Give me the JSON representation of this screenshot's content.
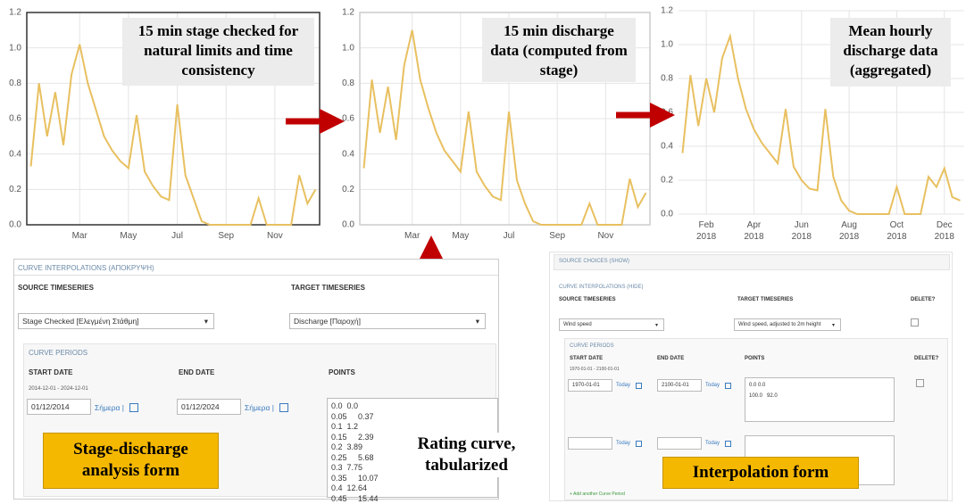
{
  "chart_data": [
    {
      "type": "line",
      "annotation": "15 min stage checked for natural limits and time consistency",
      "color": "#e8c060",
      "grid": true,
      "categories": [
        null,
        null,
        null,
        null,
        null,
        null,
        "Mar",
        null,
        null,
        null,
        null,
        null,
        "May",
        null,
        null,
        null,
        null,
        null,
        "Jul",
        null,
        null,
        null,
        null,
        null,
        "Sep",
        null,
        null,
        null,
        null,
        null,
        "Nov",
        null,
        null,
        null,
        null,
        null
      ],
      "values": [
        0.33,
        0.8,
        0.5,
        0.75,
        0.45,
        0.85,
        1.02,
        0.8,
        0.65,
        0.5,
        0.42,
        0.36,
        0.32,
        0.62,
        0.3,
        0.22,
        0.16,
        0.14,
        0.68,
        0.28,
        0.15,
        0.02,
        0,
        0,
        0,
        0,
        0,
        0,
        0.15,
        0,
        0,
        0,
        0,
        0.28,
        0.12,
        0.2
      ],
      "ylim": [
        0,
        1.2
      ],
      "yticks": [
        {
          "value": 0,
          "label": "0.0"
        },
        0.2,
        0.4,
        0.6,
        0.8,
        {
          "value": 1,
          "label": "1.0"
        },
        1.2
      ]
    },
    {
      "type": "line",
      "annotation": "15 min discharge data (computed from stage)",
      "color": "#e8c060",
      "grid": true,
      "categories": [
        null,
        null,
        null,
        null,
        null,
        null,
        "Mar",
        null,
        null,
        null,
        null,
        null,
        "May",
        null,
        null,
        null,
        null,
        null,
        "Jul",
        null,
        null,
        null,
        null,
        null,
        "Sep",
        null,
        null,
        null,
        null,
        null,
        "Nov",
        null,
        null,
        null,
        null,
        null
      ],
      "values": [
        0.32,
        0.82,
        0.52,
        0.78,
        0.48,
        0.9,
        1.1,
        0.82,
        0.66,
        0.52,
        0.42,
        0.36,
        0.3,
        0.64,
        0.3,
        0.22,
        0.16,
        0.14,
        0.64,
        0.25,
        0.12,
        0.02,
        0,
        0,
        0,
        0,
        0,
        0,
        0.12,
        0,
        0,
        0,
        0,
        0.26,
        0.1,
        0.18
      ],
      "ylim": [
        0,
        1.2
      ],
      "yticks": [
        {
          "value": 0,
          "label": "0.0"
        },
        0.2,
        0.4,
        0.6,
        0.8,
        {
          "value": 1,
          "label": "1.0"
        },
        1.2
      ]
    },
    {
      "type": "line",
      "annotation": "Mean hourly discharge data (aggregated)",
      "color": "#e8c060",
      "grid": true,
      "categories": [
        null,
        null,
        null,
        "Feb 2018",
        null,
        null,
        null,
        null,
        null,
        "Apr 2018",
        null,
        null,
        null,
        null,
        null,
        "Jun 2018",
        null,
        null,
        null,
        null,
        null,
        "Aug 2018",
        null,
        null,
        null,
        null,
        null,
        "Oct 2018",
        null,
        null,
        null,
        null,
        null,
        "Dec 2018",
        null,
        null
      ],
      "values": [
        0.36,
        0.82,
        0.52,
        0.8,
        0.6,
        0.92,
        1.05,
        0.8,
        0.62,
        0.5,
        0.42,
        0.36,
        0.3,
        0.62,
        0.28,
        0.2,
        0.15,
        0.14,
        0.62,
        0.22,
        0.08,
        0.02,
        0,
        0,
        0,
        0,
        0,
        0.16,
        0,
        0,
        0,
        0.22,
        0.16,
        0.27,
        0.1,
        0.08
      ],
      "ylim": [
        0,
        1.2
      ],
      "yticks": [
        {
          "value": 0,
          "label": "0.0"
        },
        0.2,
        0.4,
        0.6,
        0.8,
        {
          "value": 1,
          "label": "1.0"
        },
        1.2
      ]
    }
  ],
  "left_form": {
    "title": "CURVE INTERPOLATIONS (ΑΠΟΚΡΥΨΗ)",
    "source_label": "SOURCE TIMESERIES",
    "target_label": "TARGET TIMESERIES",
    "source_value": "Stage Checked [Ελεγμένη Στάθμη]",
    "target_value": "Discharge [Παροχή]",
    "periods_title": "CURVE PERIODS",
    "start_label": "START DATE",
    "end_label": "END DATE",
    "points_label": "POINTS",
    "period_range": "2014-12-01 - 2024-12-01",
    "start_date": "01/12/2014",
    "end_date": "01/12/2024",
    "today": "Σήμερα |",
    "points": [
      "0.0  0.0",
      "0.05     0.37",
      "0.1  1.2",
      "0.15     2.39",
      "0.2  3.89",
      "0.25     5.68",
      "0.3  7.75",
      "0.35     10.07",
      "0.4  12.64",
      "0.45     15.44"
    ],
    "caption": "Stage-discharge analysis form",
    "points_caption": "Rating curve, tabularized"
  },
  "right_form": {
    "top_title": "SOURCE CHOICES (SHOW)",
    "title": "CURVE INTERPOLATIONS (HIDE)",
    "source_label": "SOURCE TIMESERIES",
    "target_label": "TARGET TIMESERIES",
    "delete_label": "DELETE?",
    "source_value": "Wind speed",
    "target_value": "Wind speed, adjusted to 2m height",
    "periods_title": "CURVE PERIODS",
    "start_label": "START DATE",
    "end_label": "END DATE",
    "points_label": "POINTS",
    "period_range": "1970-01-01 - 2100-01-01",
    "start_date": "1970-01-01",
    "end_date": "2100-01-01",
    "today": "Today",
    "points": [
      "0.0 0.0",
      "100.0   92.0"
    ],
    "add_period": "+ Add another Curve Period",
    "caption": "Interpolation form"
  }
}
